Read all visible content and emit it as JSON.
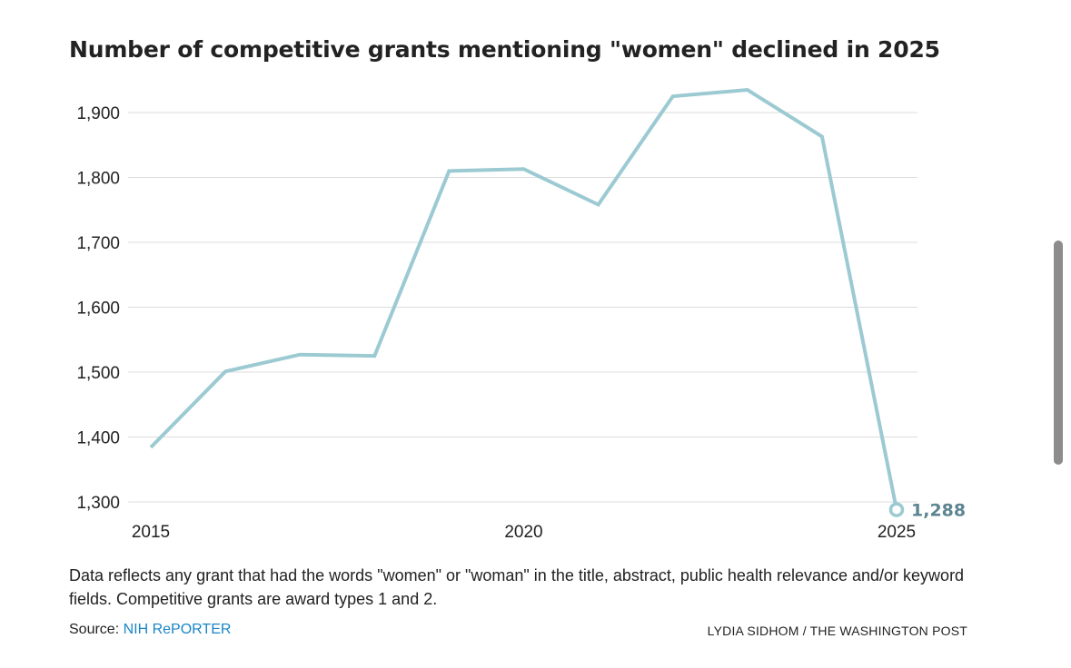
{
  "chart_data": {
    "type": "line",
    "title": "Number of competitive grants mentioning \"women\" declined in 2025",
    "xlabel": "",
    "ylabel": "",
    "x": [
      2015,
      2016,
      2017,
      2018,
      2019,
      2020,
      2021,
      2022,
      2023,
      2024,
      2025
    ],
    "series": [
      {
        "values": [
          1384,
          1501,
          1527,
          1525,
          1810,
          1813,
          1758,
          1925,
          1935,
          1863,
          1288
        ],
        "color": "#9ccad2"
      }
    ],
    "xlim": [
      2015,
      2025
    ],
    "ylim": [
      1300,
      1900
    ],
    "y_ticks": [
      "1,300",
      "1,400",
      "1,500",
      "1,600",
      "1,700",
      "1,800",
      "1,900"
    ],
    "x_ticks": [
      "2015",
      "2020",
      "2025"
    ],
    "end_label": "1,288",
    "grid": true,
    "gridline_color": "#dddddd",
    "note": "Data reflects any grant that had the words \"women\" or \"woman\" in the title, abstract, public health relevance and/or keyword fields. Competitive grants are award types 1 and 2.",
    "source_prefix": "Source:",
    "source_link": "NIH RePORTER",
    "source_link_color": "#1a86c8",
    "credit": "LYDIA SIDHOM / THE WASHINGTON POST"
  }
}
